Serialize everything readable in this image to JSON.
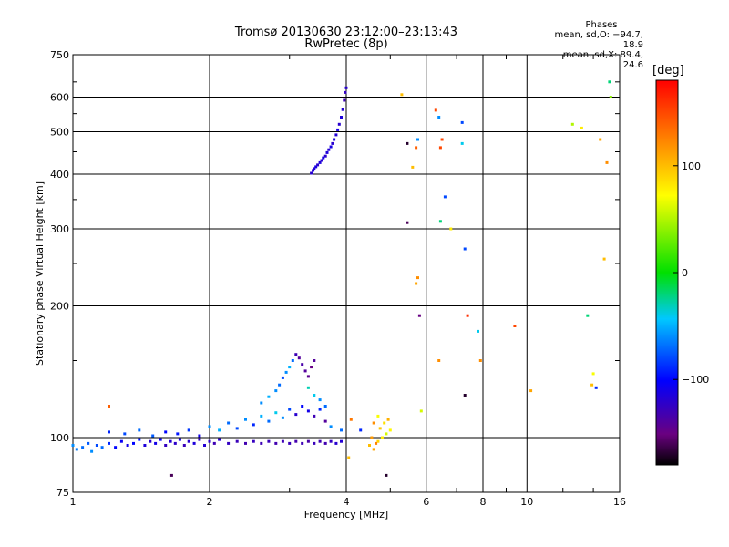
{
  "title_line1": "Tromsø 20130630 23:12:00–23:13:43",
  "title_line2": "RwPretec (8p)",
  "phases": {
    "heading": "Phases",
    "line_o": "mean, sd,O: −94.7, 18.9",
    "line_x": "mean, sd,X:  89.4, 24.6"
  },
  "colorbar": {
    "unit": "[deg]",
    "ticks": [
      "100",
      "0",
      "−100"
    ],
    "tick_values": [
      100,
      0,
      -100
    ],
    "range": [
      -180,
      180
    ]
  },
  "chart_data": {
    "type": "scatter",
    "xlabel": "Frequency [MHz]",
    "ylabel": "Stationary phase Virtual Height [km]",
    "x_scale": "log",
    "y_scale": "log",
    "xlim": [
      1,
      16
    ],
    "ylim": [
      75,
      750
    ],
    "x_ticks": [
      1,
      2,
      4,
      6,
      8,
      10,
      16
    ],
    "x_tick_labels": [
      "1",
      "2",
      "4",
      "6",
      "8",
      "10",
      "16"
    ],
    "y_ticks": [
      75,
      100,
      200,
      300,
      400,
      500,
      600,
      750
    ],
    "y_tick_labels": [
      "75",
      "100",
      "200",
      "300",
      "400",
      "500",
      "600",
      "750"
    ],
    "grid": true,
    "series": [
      {
        "values_desc": "scatter points [frequency MHz, virtual height km, phase deg]",
        "points": [
          [
            1.0,
            96,
            -60
          ],
          [
            1.02,
            94,
            -65
          ],
          [
            1.05,
            95,
            -70
          ],
          [
            1.08,
            97,
            -75
          ],
          [
            1.1,
            93,
            -60
          ],
          [
            1.13,
            96,
            -80
          ],
          [
            1.16,
            95,
            -70
          ],
          [
            1.2,
            97,
            -90
          ],
          [
            1.24,
            95,
            -100
          ],
          [
            1.28,
            98,
            -105
          ],
          [
            1.32,
            96,
            -110
          ],
          [
            1.36,
            97,
            -100
          ],
          [
            1.4,
            99,
            -95
          ],
          [
            1.44,
            96,
            -115
          ],
          [
            1.48,
            98,
            -120
          ],
          [
            1.52,
            97,
            -110
          ],
          [
            1.56,
            99,
            -105
          ],
          [
            1.6,
            96,
            -125
          ],
          [
            1.64,
            98,
            -118
          ],
          [
            1.68,
            97,
            -122
          ],
          [
            1.72,
            99,
            -112
          ],
          [
            1.76,
            96,
            -128
          ],
          [
            1.8,
            98,
            -120
          ],
          [
            1.85,
            97,
            -115
          ],
          [
            1.9,
            99,
            -125
          ],
          [
            1.95,
            96,
            -118
          ],
          [
            2.0,
            98,
            -122
          ],
          [
            2.05,
            97,
            -130
          ],
          [
            2.1,
            99,
            -120
          ],
          [
            2.2,
            97,
            -125
          ],
          [
            2.3,
            98,
            -128
          ],
          [
            2.4,
            97,
            -132
          ],
          [
            2.5,
            98,
            -126
          ],
          [
            2.6,
            97,
            -130
          ],
          [
            2.7,
            98,
            -128
          ],
          [
            2.8,
            97,
            -132
          ],
          [
            2.9,
            98,
            -130
          ],
          [
            3.0,
            97,
            -128
          ],
          [
            3.1,
            98,
            -133
          ],
          [
            3.2,
            97,
            -130
          ],
          [
            3.3,
            98,
            -135
          ],
          [
            3.4,
            97,
            -128
          ],
          [
            3.5,
            98,
            -130
          ],
          [
            3.6,
            97,
            -132
          ],
          [
            3.7,
            98,
            -125
          ],
          [
            3.8,
            97,
            -120
          ],
          [
            3.9,
            98,
            -118
          ],
          [
            1.2,
            103,
            -90
          ],
          [
            1.3,
            102,
            -80
          ],
          [
            1.4,
            104,
            -70
          ],
          [
            1.5,
            101,
            -75
          ],
          [
            1.6,
            103,
            -100
          ],
          [
            1.7,
            102,
            -95
          ],
          [
            1.8,
            104,
            -85
          ],
          [
            1.9,
            101,
            -110
          ],
          [
            2.0,
            106,
            -60
          ],
          [
            2.1,
            104,
            -50
          ],
          [
            2.2,
            108,
            -70
          ],
          [
            2.3,
            105,
            -80
          ],
          [
            2.4,
            110,
            -60
          ],
          [
            2.5,
            107,
            -90
          ],
          [
            2.6,
            112,
            -50
          ],
          [
            2.7,
            109,
            -70
          ],
          [
            2.8,
            114,
            -40
          ],
          [
            2.9,
            111,
            -60
          ],
          [
            3.0,
            116,
            -80
          ],
          [
            3.1,
            113,
            -120
          ],
          [
            3.2,
            118,
            -100
          ],
          [
            3.3,
            115,
            -110
          ],
          [
            3.4,
            112,
            -130
          ],
          [
            3.5,
            116,
            -90
          ],
          [
            3.6,
            109,
            -140
          ],
          [
            3.7,
            106,
            -60
          ],
          [
            3.9,
            104,
            -70
          ],
          [
            2.6,
            120,
            -60
          ],
          [
            2.7,
            124,
            -50
          ],
          [
            2.8,
            128,
            -60
          ],
          [
            2.85,
            132,
            -70
          ],
          [
            2.9,
            137,
            -80
          ],
          [
            2.95,
            141,
            -60
          ],
          [
            3.0,
            145,
            -50
          ],
          [
            3.05,
            150,
            -70
          ],
          [
            3.1,
            155,
            -130
          ],
          [
            3.15,
            152,
            -140
          ],
          [
            3.2,
            147,
            -135
          ],
          [
            3.25,
            142,
            -140
          ],
          [
            3.3,
            138,
            -145
          ],
          [
            3.35,
            145,
            -150
          ],
          [
            3.4,
            150,
            -140
          ],
          [
            3.3,
            130,
            -30
          ],
          [
            3.4,
            125,
            -40
          ],
          [
            3.5,
            122,
            -60
          ],
          [
            3.6,
            118,
            -70
          ],
          [
            3.35,
            402,
            -120
          ],
          [
            3.38,
            408,
            -115
          ],
          [
            3.4,
            412,
            -118
          ],
          [
            3.43,
            416,
            -112
          ],
          [
            3.46,
            420,
            -120
          ],
          [
            3.5,
            425,
            -115
          ],
          [
            3.53,
            430,
            -118
          ],
          [
            3.56,
            436,
            -112
          ],
          [
            3.6,
            440,
            -120
          ],
          [
            3.63,
            448,
            -115
          ],
          [
            3.66,
            455,
            -118
          ],
          [
            3.7,
            462,
            -112
          ],
          [
            3.73,
            470,
            -120
          ],
          [
            3.76,
            480,
            -115
          ],
          [
            3.8,
            492,
            -118
          ],
          [
            3.83,
            505,
            -112
          ],
          [
            3.86,
            520,
            -120
          ],
          [
            3.9,
            540,
            -115
          ],
          [
            3.93,
            562,
            -118
          ],
          [
            3.96,
            590,
            -130
          ],
          [
            3.98,
            615,
            -125
          ],
          [
            4.0,
            630,
            -120
          ],
          [
            4.5,
            96,
            100
          ],
          [
            4.6,
            94,
            110
          ],
          [
            4.7,
            98,
            90
          ],
          [
            4.8,
            100,
            80
          ],
          [
            4.9,
            102,
            60
          ],
          [
            4.6,
            108,
            120
          ],
          [
            4.7,
            112,
            70
          ],
          [
            4.75,
            105,
            95
          ],
          [
            4.85,
            108,
            85
          ],
          [
            4.95,
            110,
            105
          ],
          [
            5.0,
            104,
            75
          ],
          [
            4.55,
            100,
            115
          ],
          [
            4.65,
            97,
            125
          ],
          [
            1.2,
            118,
            140
          ],
          [
            4.05,
            90,
            100
          ],
          [
            4.1,
            110,
            130
          ],
          [
            4.3,
            104,
            -90
          ],
          [
            1.65,
            82,
            -160
          ],
          [
            4.9,
            82,
            -170
          ],
          [
            5.3,
            608,
            100
          ],
          [
            5.45,
            470,
            -170
          ],
          [
            5.6,
            415,
            100
          ],
          [
            5.7,
            460,
            140
          ],
          [
            5.75,
            480,
            -60
          ],
          [
            5.45,
            310,
            -160
          ],
          [
            5.7,
            225,
            110
          ],
          [
            5.75,
            232,
            120
          ],
          [
            5.8,
            190,
            -150
          ],
          [
            5.85,
            115,
            60
          ],
          [
            6.3,
            560,
            150
          ],
          [
            6.4,
            540,
            -60
          ],
          [
            6.45,
            460,
            150
          ],
          [
            6.5,
            480,
            150
          ],
          [
            6.6,
            355,
            -80
          ],
          [
            6.45,
            312,
            -20
          ],
          [
            6.8,
            300,
            80
          ],
          [
            7.2,
            525,
            -80
          ],
          [
            7.2,
            470,
            -40
          ],
          [
            7.3,
            270,
            -80
          ],
          [
            7.4,
            190,
            160
          ],
          [
            6.4,
            150,
            120
          ],
          [
            7.3,
            125,
            -170
          ],
          [
            7.8,
            175,
            -40
          ],
          [
            7.9,
            150,
            120
          ],
          [
            9.4,
            180,
            150
          ],
          [
            10.2,
            128,
            110
          ],
          [
            12.6,
            520,
            50
          ],
          [
            13.2,
            510,
            80
          ],
          [
            13.6,
            190,
            -20
          ],
          [
            13.9,
            132,
            100
          ],
          [
            14.0,
            140,
            70
          ],
          [
            14.2,
            130,
            -90
          ],
          [
            14.5,
            480,
            110
          ],
          [
            15.0,
            425,
            120
          ],
          [
            14.8,
            256,
            100
          ],
          [
            15.3,
            600,
            40
          ],
          [
            15.2,
            650,
            -20
          ]
        ]
      }
    ]
  }
}
